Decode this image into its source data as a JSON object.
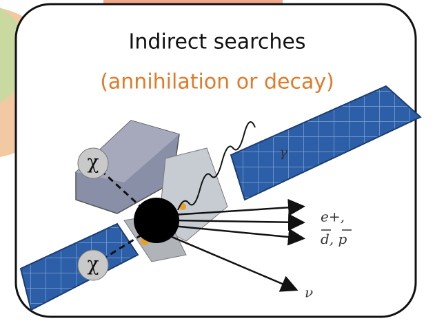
{
  "title": "Indirect searches",
  "subtitle": "(annihilation or decay)",
  "particles": {
    "dm": [
      "χ",
      "χ"
    ],
    "gamma": "γ",
    "positron": "e+,",
    "antideuteron": "d",
    "comma": ",",
    "antiproton": "p",
    "neutrino": "ν"
  }
}
